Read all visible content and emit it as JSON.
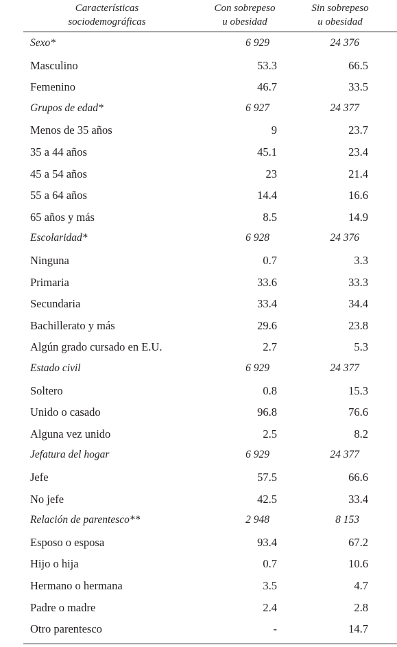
{
  "header": {
    "col1": "Características\nsociodemográficas",
    "col2": "Con sobrepeso\nu obesidad",
    "col3": "Sin sobrepeso\nu obesidad"
  },
  "rows": [
    {
      "label": "Sexo*",
      "v1": "6 929",
      "v2": "24 376",
      "section": true
    },
    {
      "label": "Masculino",
      "v1": "53.3",
      "v2": "66.5"
    },
    {
      "label": "Femenino",
      "v1": "46.7",
      "v2": "33.5"
    },
    {
      "label": "Grupos de edad*",
      "v1": "6 927",
      "v2": "24 377",
      "section": true
    },
    {
      "label": "Menos de 35 años",
      "v1": "9",
      "v2": "23.7"
    },
    {
      "label": "35 a 44 años",
      "v1": "45.1",
      "v2": "23.4"
    },
    {
      "label": "45 a 54 años",
      "v1": "23",
      "v2": "21.4"
    },
    {
      "label": "55 a 64 años",
      "v1": "14.4",
      "v2": "16.6"
    },
    {
      "label": "65 años y más",
      "v1": "8.5",
      "v2": "14.9"
    },
    {
      "label": "Escolaridad*",
      "v1": "6 928",
      "v2": "24 376",
      "section": true
    },
    {
      "label": "Ninguna",
      "v1": "0.7",
      "v2": "3.3"
    },
    {
      "label": "Primaria",
      "v1": "33.6",
      "v2": "33.3"
    },
    {
      "label": "Secundaria",
      "v1": "33.4",
      "v2": "34.4"
    },
    {
      "label": "Bachillerato y más",
      "v1": "29.6",
      "v2": "23.8"
    },
    {
      "label": "Algún grado cursado en E.U.",
      "v1": "2.7",
      "v2": "5.3"
    },
    {
      "label": "Estado civil",
      "v1": "6 929",
      "v2": "24 377",
      "section": true
    },
    {
      "label": "Soltero",
      "v1": "0.8",
      "v2": "15.3"
    },
    {
      "label": "Unido o casado",
      "v1": "96.8",
      "v2": "76.6"
    },
    {
      "label": "Alguna vez unido",
      "v1": "2.5",
      "v2": "8.2"
    },
    {
      "label": "Jefatura del hogar",
      "v1": "6 929",
      "v2": "24 377",
      "section": true
    },
    {
      "label": "Jefe",
      "v1": "57.5",
      "v2": "66.6"
    },
    {
      "label": "No jefe",
      "v1": "42.5",
      "v2": "33.4"
    },
    {
      "label": "Relación de parentesco**",
      "v1": "2 948",
      "v2": "8 153",
      "section": true
    },
    {
      "label": "Esposo o esposa",
      "v1": "93.4",
      "v2": "67.2"
    },
    {
      "label": "Hijo o hija",
      "v1": "0.7",
      "v2": "10.6"
    },
    {
      "label": "Hermano o hermana",
      "v1": "3.5",
      "v2": "4.7"
    },
    {
      "label": "Padre o madre",
      "v1": "2.4",
      "v2": "2.8"
    },
    {
      "label": "Otro parentesco",
      "v1": "-",
      "v2": "14.7"
    }
  ]
}
